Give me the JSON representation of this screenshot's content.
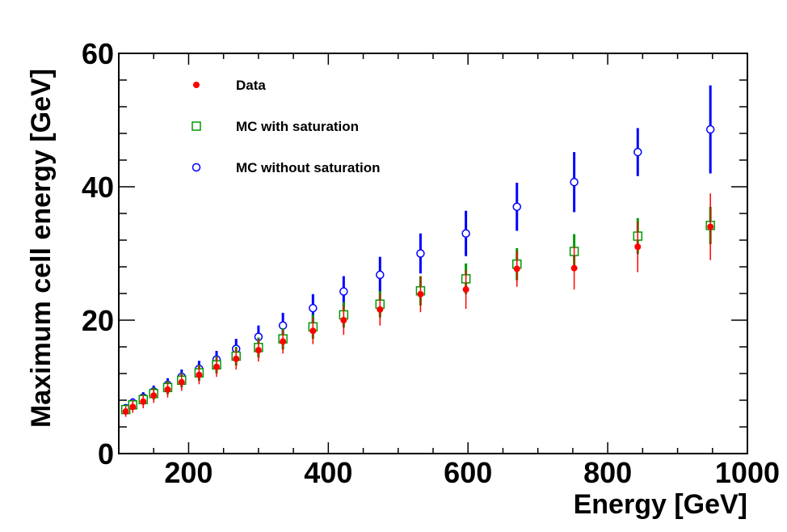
{
  "chart_data": {
    "type": "scatter",
    "title": "",
    "xlabel": "Energy [GeV]",
    "ylabel": "Maximum cell energy [GeV]",
    "xlim": [
      100,
      1000
    ],
    "ylim": [
      0,
      60
    ],
    "xticks": [
      200,
      400,
      600,
      800,
      1000
    ],
    "yticks": [
      0,
      20,
      40,
      60
    ],
    "xtick_labels": [
      "200",
      "400",
      "600",
      "800",
      "1000"
    ],
    "ytick_labels": [
      "0",
      "20",
      "40",
      "60"
    ],
    "grid": false,
    "legend_position": "top-left",
    "series": [
      {
        "name": "Data",
        "marker": "filled-circle",
        "color": "#ff0000",
        "x": [
          110,
          120,
          135,
          150,
          170,
          190,
          215,
          240,
          268,
          300,
          335,
          378,
          422,
          474,
          532,
          597,
          670,
          752,
          843,
          947
        ],
        "y": [
          6.3,
          7.0,
          7.8,
          8.7,
          9.6,
          10.7,
          11.8,
          13.0,
          14.2,
          15.5,
          16.8,
          18.4,
          20.0,
          21.6,
          23.9,
          24.6,
          27.7,
          27.8,
          31.0,
          34.0
        ],
        "err": [
          0.8,
          0.9,
          1.0,
          1.1,
          1.2,
          1.3,
          1.4,
          1.5,
          1.6,
          1.7,
          1.8,
          2.0,
          2.2,
          2.4,
          2.7,
          2.9,
          2.7,
          3.2,
          3.8,
          5.0
        ]
      },
      {
        "name": "MC with saturation",
        "marker": "open-square",
        "color": "#009900",
        "x": [
          110,
          120,
          135,
          150,
          170,
          190,
          215,
          240,
          268,
          300,
          335,
          378,
          422,
          474,
          532,
          597,
          670,
          752,
          843,
          947
        ],
        "y": [
          6.6,
          7.3,
          8.1,
          9.0,
          9.9,
          11.0,
          12.1,
          13.3,
          14.6,
          15.9,
          17.2,
          19.0,
          20.8,
          22.4,
          24.4,
          26.2,
          28.4,
          30.3,
          32.6,
          34.2
        ],
        "err": [
          0.6,
          0.7,
          0.8,
          0.9,
          1.0,
          1.1,
          1.2,
          1.3,
          1.4,
          1.5,
          1.6,
          1.8,
          1.9,
          2.0,
          2.2,
          2.3,
          2.4,
          2.6,
          2.7,
          2.8
        ]
      },
      {
        "name": "MC without saturation",
        "marker": "open-circle",
        "color": "#0000ff",
        "x": [
          110,
          120,
          135,
          150,
          170,
          190,
          215,
          240,
          268,
          300,
          335,
          378,
          422,
          474,
          532,
          597,
          670,
          752,
          843,
          947
        ],
        "y": [
          6.8,
          7.6,
          8.4,
          9.3,
          10.3,
          11.5,
          12.7,
          14.1,
          15.7,
          17.5,
          19.2,
          21.8,
          24.3,
          26.8,
          30.0,
          33.0,
          37.0,
          40.7,
          45.2,
          48.6
        ],
        "err": [
          0.6,
          0.7,
          0.8,
          0.9,
          1.0,
          1.1,
          1.2,
          1.3,
          1.5,
          1.7,
          1.9,
          2.1,
          2.3,
          2.7,
          3.0,
          3.4,
          3.6,
          4.5,
          3.6,
          6.6
        ]
      }
    ]
  }
}
